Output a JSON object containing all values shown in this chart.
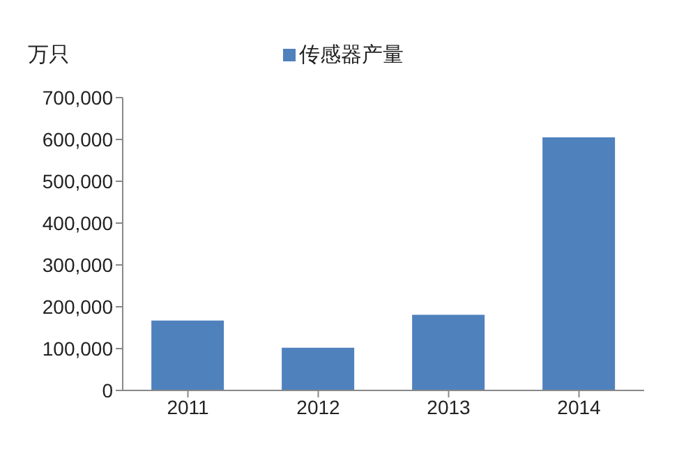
{
  "chart_data": {
    "type": "bar",
    "ylabel": "万只",
    "categories": [
      "2011",
      "2012",
      "2013",
      "2014"
    ],
    "series": [
      {
        "name": "传感器产量",
        "color": "#4f81bd",
        "values": [
          167000,
          102000,
          181000,
          605000
        ]
      }
    ],
    "ylim": [
      0,
      700000
    ],
    "yticks": [
      0,
      {
        "value": 100000,
        "label": "100,000"
      },
      {
        "value": 200000,
        "label": "200,000"
      },
      {
        "value": 300000,
        "label": "300,000"
      },
      {
        "value": 400000,
        "label": "400,000"
      },
      {
        "value": 500000,
        "label": "500,000"
      },
      {
        "value": 600000,
        "label": "600,000"
      },
      {
        "value": 700000,
        "label": "700,000"
      }
    ],
    "grid": false,
    "legend": "top"
  }
}
